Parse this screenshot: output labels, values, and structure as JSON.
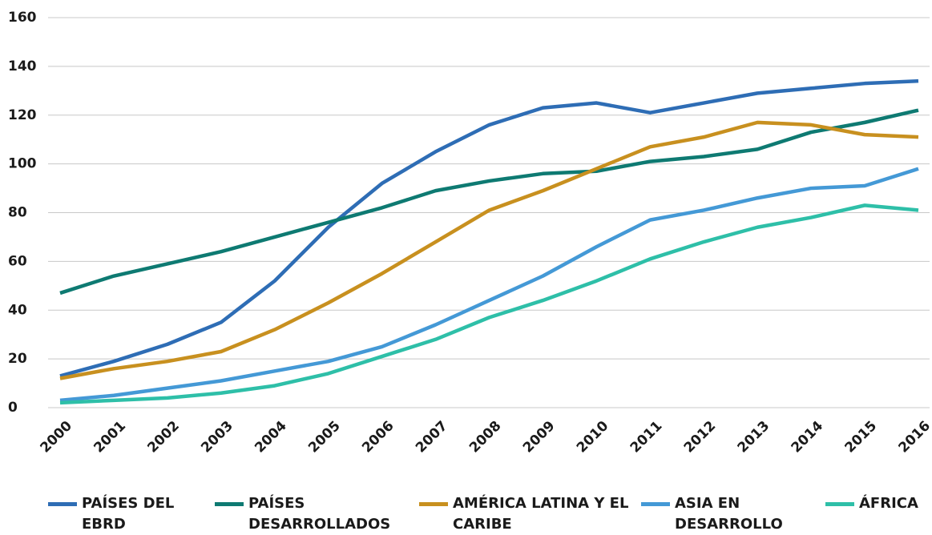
{
  "chart_data": {
    "type": "line",
    "x": [
      2000,
      2001,
      2002,
      2003,
      2004,
      2005,
      2006,
      2007,
      2008,
      2009,
      2010,
      2011,
      2012,
      2013,
      2014,
      2015,
      2016
    ],
    "xticks": [
      2000,
      2001,
      2002,
      2003,
      2004,
      2005,
      2006,
      2007,
      2008,
      2009,
      2010,
      2011,
      2012,
      2013,
      2014,
      2015,
      2016
    ],
    "xlim": [
      2000,
      2016
    ],
    "ylim": [
      0,
      160
    ],
    "yticks": [
      0,
      20,
      40,
      60,
      80,
      100,
      120,
      140,
      160
    ],
    "grid": true,
    "legend": "bottom",
    "series": [
      {
        "name": "PAÍSES DEL EBRD",
        "color": "#2e6db5",
        "values": [
          13,
          19,
          26,
          35,
          52,
          74,
          92,
          105,
          116,
          123,
          125,
          121,
          125,
          129,
          131,
          133,
          134
        ]
      },
      {
        "name": "PAÍSES DESARROLLADOS",
        "color": "#0e7a72",
        "values": [
          47,
          54,
          59,
          64,
          70,
          76,
          82,
          89,
          93,
          96,
          97,
          101,
          103,
          106,
          113,
          117,
          122
        ]
      },
      {
        "name": "AMÉRICA LATINA Y EL CARIBE",
        "color": "#c8901f",
        "values": [
          12,
          16,
          19,
          23,
          32,
          43,
          55,
          68,
          81,
          89,
          98,
          107,
          111,
          117,
          116,
          112,
          111
        ]
      },
      {
        "name": "ASIA EN DESARROLLO",
        "color": "#4499d6",
        "values": [
          3,
          5,
          8,
          11,
          15,
          19,
          25,
          34,
          44,
          54,
          66,
          77,
          81,
          86,
          90,
          91,
          98
        ]
      },
      {
        "name": "ÁFRICA",
        "color": "#2ebfa8",
        "values": [
          2,
          3,
          4,
          6,
          9,
          14,
          21,
          28,
          37,
          44,
          52,
          61,
          68,
          74,
          78,
          83,
          81
        ]
      }
    ]
  }
}
